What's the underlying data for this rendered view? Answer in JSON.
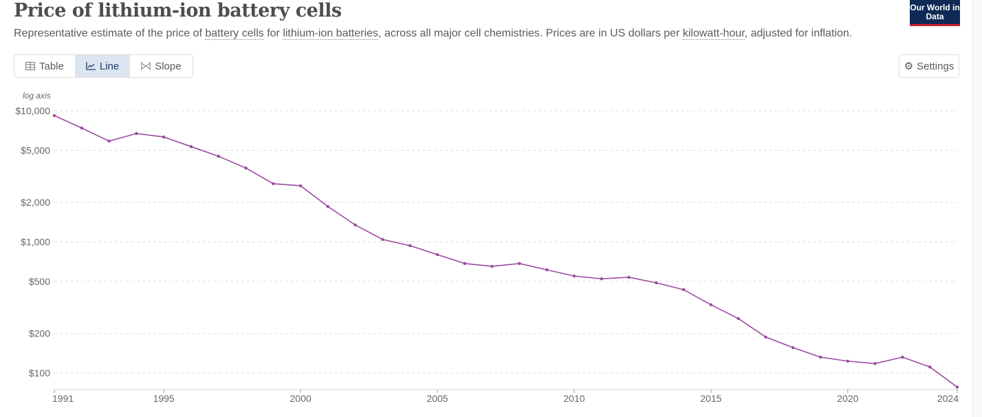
{
  "header": {
    "title": "Price of lithium-ion battery cells",
    "subtitle_parts": [
      "Representative estimate of the price of ",
      "battery cells",
      " for ",
      "lithium-ion batteries",
      ", across all major cell chemistries. Prices are in US dollars per ",
      "kilowatt-hour",
      ", adjusted for inflation."
    ],
    "logo": "Our World in Data"
  },
  "tabs": [
    {
      "label": "Table",
      "icon": "table-icon"
    },
    {
      "label": "Line",
      "icon": "line-chart-icon",
      "active": true
    },
    {
      "label": "Slope",
      "icon": "slope-icon"
    }
  ],
  "settings_label": "Settings",
  "chart_data": {
    "type": "line",
    "yscale": "log",
    "scale_label": "log axis",
    "ylim": [
      100,
      10000
    ],
    "y_ticks": [
      {
        "v": 10000,
        "label": "$10,000"
      },
      {
        "v": 5000,
        "label": "$5,000"
      },
      {
        "v": 2000,
        "label": "$2,000"
      },
      {
        "v": 1000,
        "label": "$1,000"
      },
      {
        "v": 500,
        "label": "$500"
      },
      {
        "v": 200,
        "label": "$200"
      },
      {
        "v": 100,
        "label": "$100"
      }
    ],
    "x_ticks": [
      1991,
      1995,
      2000,
      2005,
      2010,
      2015,
      2020,
      2024
    ],
    "grid": "horizontal dashed",
    "color": "#9a4aa0",
    "x": [
      1991,
      1992,
      1993,
      1994,
      1995,
      1996,
      1997,
      1998,
      1999,
      2000,
      2001,
      2002,
      2003,
      2004,
      2005,
      2006,
      2007,
      2008,
      2009,
      2010,
      2011,
      2012,
      2013,
      2014,
      2015,
      2016,
      2017,
      2018,
      2019,
      2020,
      2021,
      2022,
      2023,
      2024
    ],
    "values": [
      9190,
      7390,
      5870,
      6710,
      6310,
      5330,
      4500,
      3660,
      2780,
      2680,
      1860,
      1345,
      1043,
      936,
      800,
      684,
      651,
      684,
      612,
      549,
      523,
      537,
      487,
      432,
      331,
      260,
      188,
      156,
      132,
      123,
      118,
      132,
      111,
      78
    ]
  }
}
